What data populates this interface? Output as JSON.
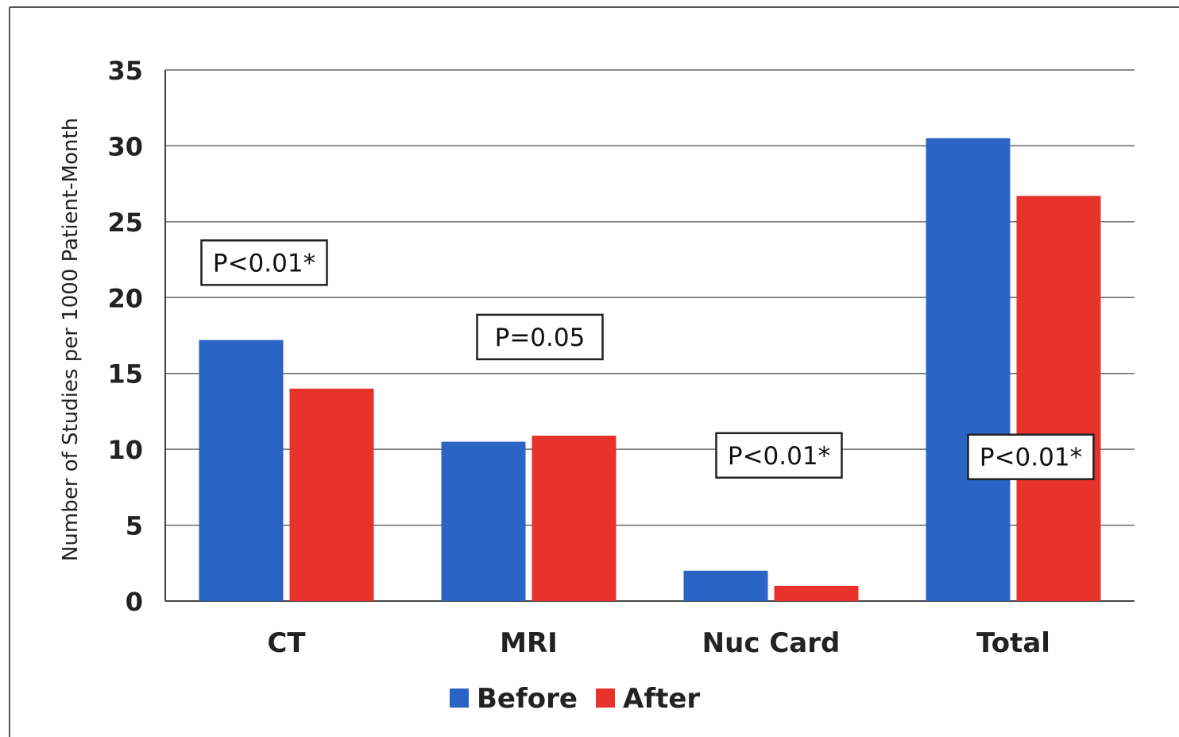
{
  "chart_data": {
    "type": "bar",
    "categories": [
      "CT",
      "MRI",
      "Nuc Card",
      "Total"
    ],
    "series": [
      {
        "name": "Before",
        "values": [
          17.2,
          10.5,
          2.0,
          30.5
        ]
      },
      {
        "name": "After",
        "values": [
          14.0,
          10.9,
          1.0,
          26.7
        ]
      }
    ],
    "ylabel": "Number of Studies per 1000 Patient-Month",
    "xlabel": "",
    "ylim": [
      0,
      35
    ],
    "yticks": [
      0,
      5,
      10,
      15,
      20,
      25,
      30,
      35
    ],
    "grid": true,
    "legend": "bottom-center",
    "annotations": [
      "P<0.01*",
      "P=0.05",
      "P<0.01*",
      "P<0.01*"
    ]
  },
  "colors": {
    "Before": "#2a64c4",
    "After": "#e8322c"
  }
}
